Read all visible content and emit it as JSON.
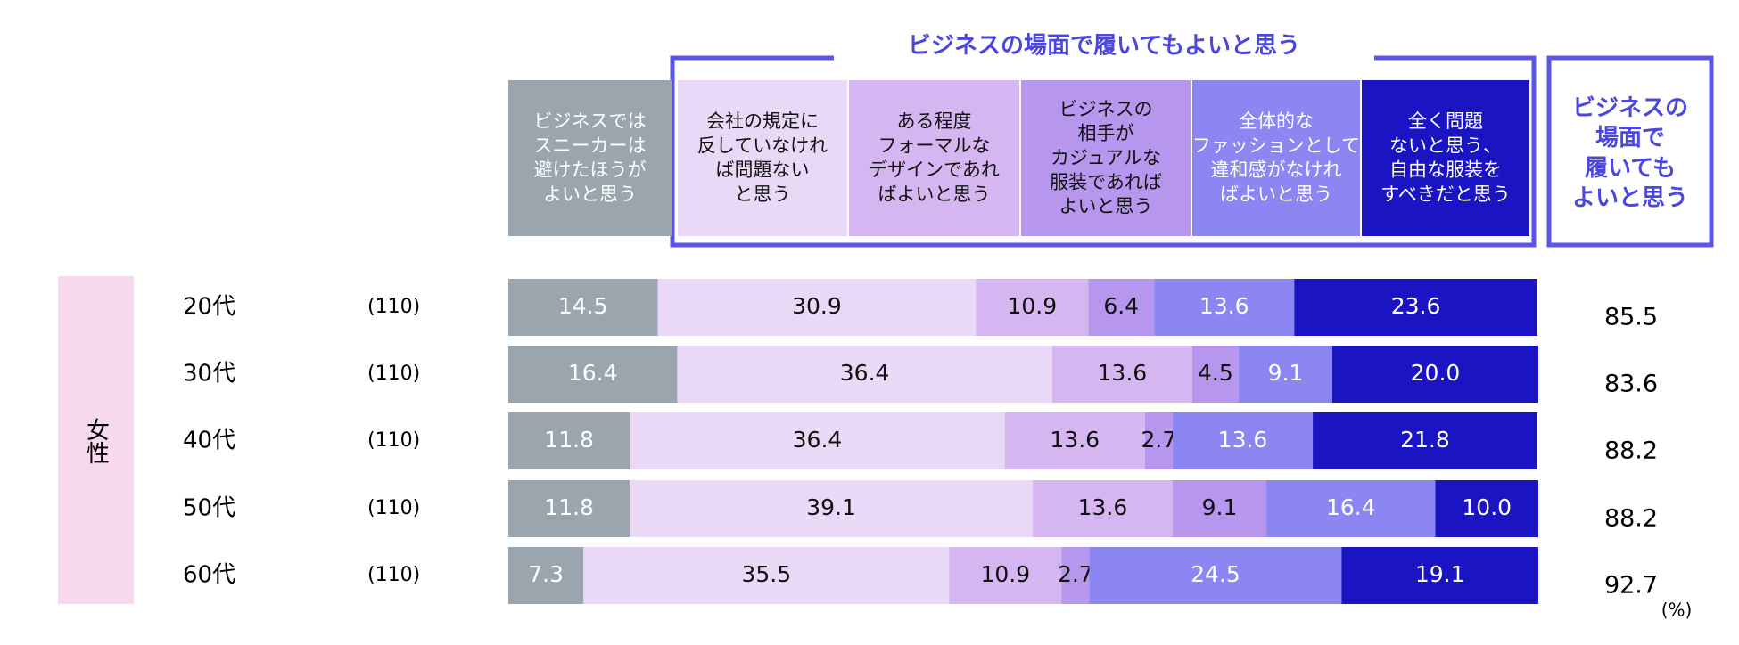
{
  "chart_data": {
    "type": "stacked_bar_horizontal",
    "title": "ビジネスの場面で履いてもよいと思う",
    "group_label": "女性",
    "categories": [
      "20代",
      "30代",
      "40代",
      "50代",
      "60代"
    ],
    "sample_sizes": [
      "(110)",
      "(110)",
      "(110)",
      "(110)",
      "(110)"
    ],
    "xlim": [
      0,
      100
    ],
    "unit": "(%)",
    "series": [
      {
        "name": "ビジネスでは\nスニーカーは\n避けたほうが\nよいと思う",
        "color": "#9aa5ad",
        "values": [
          14.5,
          16.4,
          11.8,
          11.8,
          7.3
        ],
        "value_labels": [
          "14.5",
          "16.4",
          "11.8",
          "11.8",
          "7.3"
        ]
      },
      {
        "name": "会社の規定に\n反していなけれ\nば問題ない\nと思う",
        "color": "#ead9f6",
        "values": [
          30.9,
          36.4,
          36.4,
          39.1,
          35.5
        ],
        "value_labels": [
          "30.9",
          "36.4",
          "36.4",
          "39.1",
          "35.5"
        ]
      },
      {
        "name": "ある程度\nフォーマルな\nデザインであれ\nばよいと思う",
        "color": "#d6b6f0",
        "values": [
          10.9,
          13.6,
          13.6,
          13.6,
          10.9
        ],
        "value_labels": [
          "10.9",
          "13.6",
          "13.6",
          "13.6",
          "10.9"
        ]
      },
      {
        "name": "ビジネスの\n相手が\nカジュアルな\n服装であれば\nよいと思う",
        "color": "#b797ee",
        "values": [
          6.4,
          4.5,
          2.7,
          9.1,
          2.7
        ],
        "value_labels": [
          "6.4",
          "4.5",
          "2.7",
          "9.1",
          "2.7"
        ]
      },
      {
        "name": "全体的な\nファッションとして\n違和感がなけれ\nばよいと思う",
        "color": "#8b86f2",
        "values": [
          13.6,
          9.1,
          13.6,
          16.4,
          24.5
        ],
        "value_labels": [
          "13.6",
          "9.1",
          "13.6",
          "16.4",
          "24.5"
        ]
      },
      {
        "name": "全く問題\nないと思う、\n自由な服装を\nすべきだと思う",
        "color": "#1b14c2",
        "values": [
          23.6,
          20,
          21.8,
          10,
          19.1
        ],
        "value_labels": [
          "23.6",
          "20.0",
          "21.8",
          "10.0",
          "19.1"
        ]
      }
    ],
    "totals": {
      "name": "ビジネスの\n場面で\n履いても\nよいと思う",
      "values": [
        85.5,
        83.6,
        88.2,
        88.2,
        92.7
      ]
    }
  }
}
